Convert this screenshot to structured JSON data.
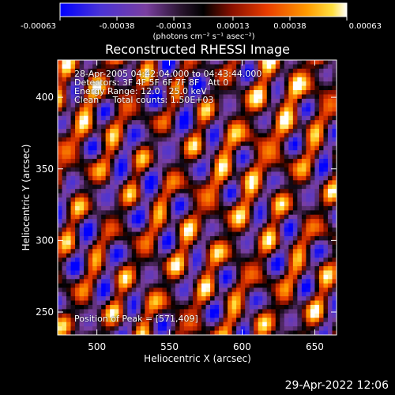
{
  "colorbar": {
    "tick_labels": [
      "-0.00063",
      "-0.00038",
      "-0.00013",
      "0.00013",
      "0.00038",
      "0.00063"
    ],
    "tick_values": [
      -0.00063,
      -0.00038,
      -0.00013,
      0.00013,
      0.00038,
      0.00063
    ],
    "unit_label": "(photons cm⁻² s⁻¹ asec⁻²)",
    "colors": [
      "#0000ff",
      "#5a3cc8",
      "#7a3fa0",
      "#000000",
      "#8a1400",
      "#e83c00",
      "#ff9a00",
      "#ffe040",
      "#ffffff"
    ]
  },
  "image": {
    "title": "Reconstructed RHESSI Image",
    "overlay": [
      "28-Apr-2005 04:42:04.000 to 04:43:44.000",
      "Detectors: 3F 4F 5F 6F 7F 8F   Att 0",
      "Energy Range: 12.0 - 25.0 keV",
      "Clean     Total counts: 1.50E+03"
    ],
    "peak_label": "Position of Peak = [571,409]"
  },
  "chart_data": {
    "type": "heatmap",
    "title": "Reconstructed RHESSI Image",
    "xlabel": "Heliocentric X (arcsec)",
    "ylabel": "Heliocentric Y (arcsec)",
    "xlim": [
      473,
      665
    ],
    "ylim": [
      234,
      426
    ],
    "x_ticks": [
      500,
      550,
      600,
      650
    ],
    "y_ticks": [
      250,
      300,
      350,
      400
    ],
    "zlim": [
      -0.00063,
      0.00063
    ],
    "peak": [
      571,
      409
    ]
  },
  "footer": {
    "timestamp": "29-Apr-2022 12:06"
  }
}
